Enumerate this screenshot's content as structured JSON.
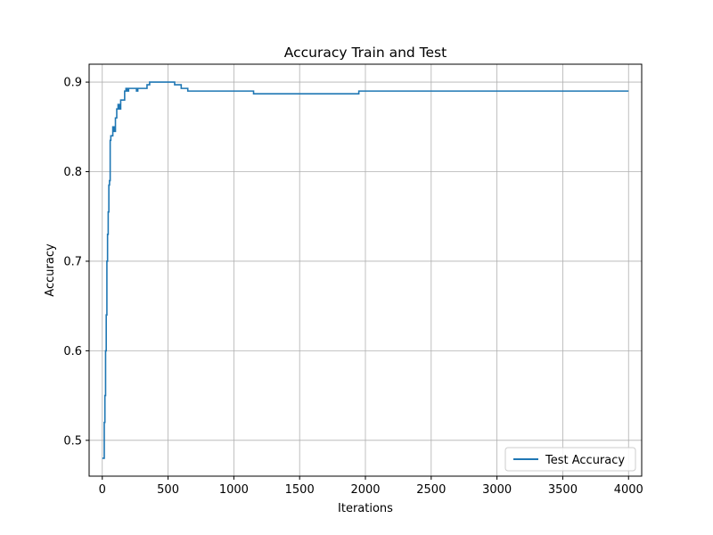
{
  "chart_data": {
    "type": "line",
    "title": "Accuracy Train and Test",
    "xlabel": "Iterations",
    "ylabel": "Accuracy",
    "xlim": [
      -100,
      4100
    ],
    "ylim": [
      0.46,
      0.92
    ],
    "xticks": [
      0,
      500,
      1000,
      1500,
      2000,
      2500,
      3000,
      3500,
      4000
    ],
    "yticks": [
      0.5,
      0.6,
      0.7,
      0.8,
      0.9
    ],
    "xtick_labels": [
      "0",
      "500",
      "1000",
      "1500",
      "2000",
      "2500",
      "3000",
      "3500",
      "4000"
    ],
    "ytick_labels": [
      "0.5",
      "0.6",
      "0.7",
      "0.8",
      "0.9"
    ],
    "grid": true,
    "legend_position": "bottom-right",
    "series": [
      {
        "name": "Test Accuracy",
        "color": "#1f77b4",
        "x": [
          0,
          10,
          15,
          20,
          25,
          30,
          35,
          40,
          45,
          50,
          55,
          60,
          65,
          70,
          80,
          90,
          100,
          110,
          120,
          130,
          140,
          150,
          160,
          170,
          180,
          190,
          200,
          250,
          260,
          270,
          300,
          340,
          360,
          380,
          400,
          450,
          500,
          520,
          550,
          580,
          600,
          650,
          700,
          1000,
          1150,
          1200,
          1500,
          1930,
          1950,
          2500,
          3000,
          3500,
          4000
        ],
        "y": [
          0.48,
          0.48,
          0.52,
          0.55,
          0.6,
          0.64,
          0.7,
          0.73,
          0.755,
          0.785,
          0.79,
          0.835,
          0.84,
          0.84,
          0.85,
          0.845,
          0.86,
          0.87,
          0.875,
          0.87,
          0.88,
          0.88,
          0.88,
          0.89,
          0.893,
          0.89,
          0.893,
          0.893,
          0.89,
          0.893,
          0.893,
          0.897,
          0.9,
          0.9,
          0.9,
          0.9,
          0.9,
          0.9,
          0.897,
          0.897,
          0.893,
          0.89,
          0.89,
          0.89,
          0.887,
          0.887,
          0.887,
          0.887,
          0.89,
          0.89,
          0.89,
          0.89,
          0.89
        ]
      }
    ]
  }
}
